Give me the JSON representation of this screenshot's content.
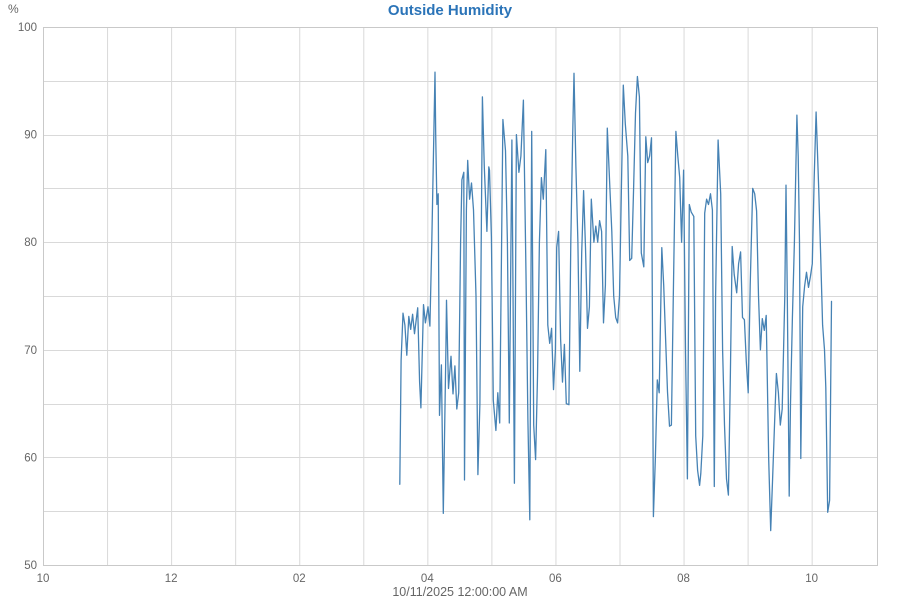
{
  "chart_data": {
    "type": "line",
    "title": "Outside Humidity",
    "xlabel": "10/11/2025 12:00:00 AM",
    "ylabel": "%",
    "grid": "on",
    "legend": "none",
    "colors": {
      "title": "#2b74b8",
      "axis_text": "#666666",
      "gridline": "#d9d9d9",
      "border": "#c9c9c9",
      "background": "#ffffff",
      "series_line": "#4682b4"
    },
    "y_axis": {
      "unit": "%",
      "min": 50,
      "max": 100,
      "major_step": 10,
      "minor_step": 5,
      "major_tick_labels": [
        "100",
        "90",
        "80",
        "70",
        "60",
        "50"
      ]
    },
    "x_axis": {
      "label": "10/11/2025 12:00:00 AM",
      "min_hours": 0,
      "max_hours": 13.02,
      "minor_step_hours": 1,
      "ticks": [
        {
          "t": 0,
          "label": "10"
        },
        {
          "t": 2,
          "label": "12"
        },
        {
          "t": 4,
          "label": "02"
        },
        {
          "t": 6,
          "label": "04"
        },
        {
          "t": 8,
          "label": "06"
        },
        {
          "t": 10,
          "label": "08"
        },
        {
          "t": 12,
          "label": "10"
        }
      ]
    },
    "series": [
      {
        "name": "Outside Humidity",
        "units": "%",
        "x_units": "hours after 10:00 PM",
        "points": [
          [
            5.57,
            57.5
          ],
          [
            5.59,
            69
          ],
          [
            5.62,
            73.4
          ],
          [
            5.65,
            72.3
          ],
          [
            5.68,
            69.5
          ],
          [
            5.71,
            73.1
          ],
          [
            5.74,
            71.9
          ],
          [
            5.77,
            73.3
          ],
          [
            5.8,
            71.5
          ],
          [
            5.85,
            73.9
          ],
          [
            5.88,
            67
          ],
          [
            5.9,
            64.6
          ],
          [
            5.94,
            74.2
          ],
          [
            5.97,
            72.5
          ],
          [
            6.01,
            74
          ],
          [
            6.04,
            72.2
          ],
          [
            6.07,
            80
          ],
          [
            6.12,
            95.8
          ],
          [
            6.13,
            90
          ],
          [
            6.15,
            83.5
          ],
          [
            6.17,
            84.5
          ],
          [
            6.19,
            63.9
          ],
          [
            6.22,
            68.6
          ],
          [
            6.25,
            54.8
          ],
          [
            6.29,
            70
          ],
          [
            6.3,
            74.6
          ],
          [
            6.33,
            66.4
          ],
          [
            6.37,
            69.4
          ],
          [
            6.4,
            65.9
          ],
          [
            6.43,
            68.5
          ],
          [
            6.46,
            64.5
          ],
          [
            6.49,
            66
          ],
          [
            6.52,
            80
          ],
          [
            6.54,
            85.8
          ],
          [
            6.57,
            86.5
          ],
          [
            6.58,
            57.9
          ],
          [
            6.61,
            83
          ],
          [
            6.63,
            87.6
          ],
          [
            6.66,
            84
          ],
          [
            6.69,
            85.5
          ],
          [
            6.72,
            83
          ],
          [
            6.76,
            75
          ],
          [
            6.79,
            58.4
          ],
          [
            6.82,
            65
          ],
          [
            6.86,
            93.5
          ],
          [
            6.89,
            87
          ],
          [
            6.93,
            81
          ],
          [
            6.96,
            87
          ],
          [
            6.97,
            86.7
          ],
          [
            7.0,
            80.5
          ],
          [
            7.03,
            65.3
          ],
          [
            7.07,
            62.5
          ],
          [
            7.1,
            66
          ],
          [
            7.13,
            63.2
          ],
          [
            7.18,
            91.4
          ],
          [
            7.22,
            88.5
          ],
          [
            7.25,
            80
          ],
          [
            7.28,
            63.2
          ],
          [
            7.32,
            89.5
          ],
          [
            7.36,
            57.6
          ],
          [
            7.39,
            90
          ],
          [
            7.43,
            86.5
          ],
          [
            7.46,
            88
          ],
          [
            7.5,
            93.2
          ],
          [
            7.54,
            77
          ],
          [
            7.57,
            63.5
          ],
          [
            7.6,
            54.2
          ],
          [
            7.63,
            90.3
          ],
          [
            7.66,
            63
          ],
          [
            7.69,
            59.8
          ],
          [
            7.72,
            67.5
          ],
          [
            7.75,
            80
          ],
          [
            7.78,
            86
          ],
          [
            7.81,
            84
          ],
          [
            7.85,
            88.6
          ],
          [
            7.88,
            72.3
          ],
          [
            7.91,
            70.6
          ],
          [
            7.94,
            72
          ],
          [
            7.97,
            66.3
          ],
          [
            8.0,
            70
          ],
          [
            8.02,
            79.5
          ],
          [
            8.05,
            81
          ],
          [
            8.08,
            71
          ],
          [
            8.11,
            67
          ],
          [
            8.14,
            70.5
          ],
          [
            8.17,
            65
          ],
          [
            8.21,
            64.9
          ],
          [
            8.24,
            80
          ],
          [
            8.27,
            90
          ],
          [
            8.29,
            95.7
          ],
          [
            8.32,
            87
          ],
          [
            8.35,
            80
          ],
          [
            8.38,
            68
          ],
          [
            8.41,
            79
          ],
          [
            8.44,
            84.8
          ],
          [
            8.47,
            79.5
          ],
          [
            8.5,
            72
          ],
          [
            8.53,
            74
          ],
          [
            8.56,
            84
          ],
          [
            8.6,
            80
          ],
          [
            8.63,
            81.5
          ],
          [
            8.66,
            80
          ],
          [
            8.69,
            82
          ],
          [
            8.72,
            81
          ],
          [
            8.75,
            72.5
          ],
          [
            8.78,
            76
          ],
          [
            8.81,
            90.6
          ],
          [
            8.85,
            85
          ],
          [
            8.88,
            81
          ],
          [
            8.91,
            75
          ],
          [
            8.94,
            73
          ],
          [
            8.97,
            72.5
          ],
          [
            9.0,
            75
          ],
          [
            9.03,
            85
          ],
          [
            9.06,
            94.6
          ],
          [
            9.09,
            91
          ],
          [
            9.13,
            88
          ],
          [
            9.16,
            78.3
          ],
          [
            9.19,
            78.5
          ],
          [
            9.22,
            85
          ],
          [
            9.25,
            92
          ],
          [
            9.28,
            95.4
          ],
          [
            9.31,
            93.5
          ],
          [
            9.34,
            79
          ],
          [
            9.38,
            77.7
          ],
          [
            9.41,
            89.8
          ],
          [
            9.44,
            87.4
          ],
          [
            9.47,
            88
          ],
          [
            9.5,
            89.7
          ],
          [
            9.53,
            54.5
          ],
          [
            9.56,
            60
          ],
          [
            9.59,
            67.2
          ],
          [
            9.62,
            66
          ],
          [
            9.66,
            79.5
          ],
          [
            9.69,
            76
          ],
          [
            9.72,
            71
          ],
          [
            9.75,
            66.1
          ],
          [
            9.78,
            62.9
          ],
          [
            9.81,
            63
          ],
          [
            9.84,
            75
          ],
          [
            9.88,
            90.3
          ],
          [
            9.91,
            88
          ],
          [
            9.94,
            86
          ],
          [
            9.97,
            80
          ],
          [
            10.0,
            86.7
          ],
          [
            10.03,
            70
          ],
          [
            10.06,
            58
          ],
          [
            10.09,
            83.5
          ],
          [
            10.12,
            82.8
          ],
          [
            10.16,
            82.4
          ],
          [
            10.19,
            62
          ],
          [
            10.22,
            58.8
          ],
          [
            10.25,
            57.4
          ],
          [
            10.27,
            58.5
          ],
          [
            10.3,
            62
          ],
          [
            10.33,
            82.7
          ],
          [
            10.36,
            84
          ],
          [
            10.39,
            83.5
          ],
          [
            10.42,
            84.5
          ],
          [
            10.45,
            83
          ],
          [
            10.48,
            57.3
          ],
          [
            10.5,
            75
          ],
          [
            10.54,
            89.5
          ],
          [
            10.58,
            84.5
          ],
          [
            10.61,
            70
          ],
          [
            10.64,
            63
          ],
          [
            10.67,
            58
          ],
          [
            10.7,
            56.5
          ],
          [
            10.73,
            67.2
          ],
          [
            10.76,
            79.6
          ],
          [
            10.79,
            77
          ],
          [
            10.83,
            75.3
          ],
          [
            10.86,
            78
          ],
          [
            10.89,
            79.1
          ],
          [
            10.92,
            73
          ],
          [
            10.95,
            72.8
          ],
          [
            10.98,
            68.9
          ],
          [
            11.01,
            66
          ],
          [
            11.04,
            76
          ],
          [
            11.08,
            85
          ],
          [
            11.11,
            84.5
          ],
          [
            11.14,
            82.9
          ],
          [
            11.17,
            75
          ],
          [
            11.2,
            70
          ],
          [
            11.23,
            72.9
          ],
          [
            11.26,
            71.8
          ],
          [
            11.29,
            73.2
          ],
          [
            11.33,
            59.8
          ],
          [
            11.36,
            53.2
          ],
          [
            11.39,
            58
          ],
          [
            11.42,
            63
          ],
          [
            11.45,
            67.8
          ],
          [
            11.48,
            66
          ],
          [
            11.51,
            63
          ],
          [
            11.54,
            64.5
          ],
          [
            11.58,
            75
          ],
          [
            11.6,
            85.3
          ],
          [
            11.62,
            75
          ],
          [
            11.65,
            56.4
          ],
          [
            11.67,
            65
          ],
          [
            11.7,
            73
          ],
          [
            11.73,
            80
          ],
          [
            11.77,
            91.8
          ],
          [
            11.79,
            88
          ],
          [
            11.81,
            80
          ],
          [
            11.83,
            59.9
          ],
          [
            11.86,
            74
          ],
          [
            11.89,
            75.9
          ],
          [
            11.92,
            77.2
          ],
          [
            11.95,
            75.8
          ],
          [
            11.98,
            76.8
          ],
          [
            12.01,
            78
          ],
          [
            12.04,
            86
          ],
          [
            12.07,
            92.1
          ],
          [
            12.11,
            85
          ],
          [
            12.14,
            79
          ],
          [
            12.17,
            72.3
          ],
          [
            12.2,
            70
          ],
          [
            12.22,
            66.5
          ],
          [
            12.25,
            54.9
          ],
          [
            12.28,
            56
          ],
          [
            12.31,
            74.5
          ]
        ]
      }
    ]
  }
}
